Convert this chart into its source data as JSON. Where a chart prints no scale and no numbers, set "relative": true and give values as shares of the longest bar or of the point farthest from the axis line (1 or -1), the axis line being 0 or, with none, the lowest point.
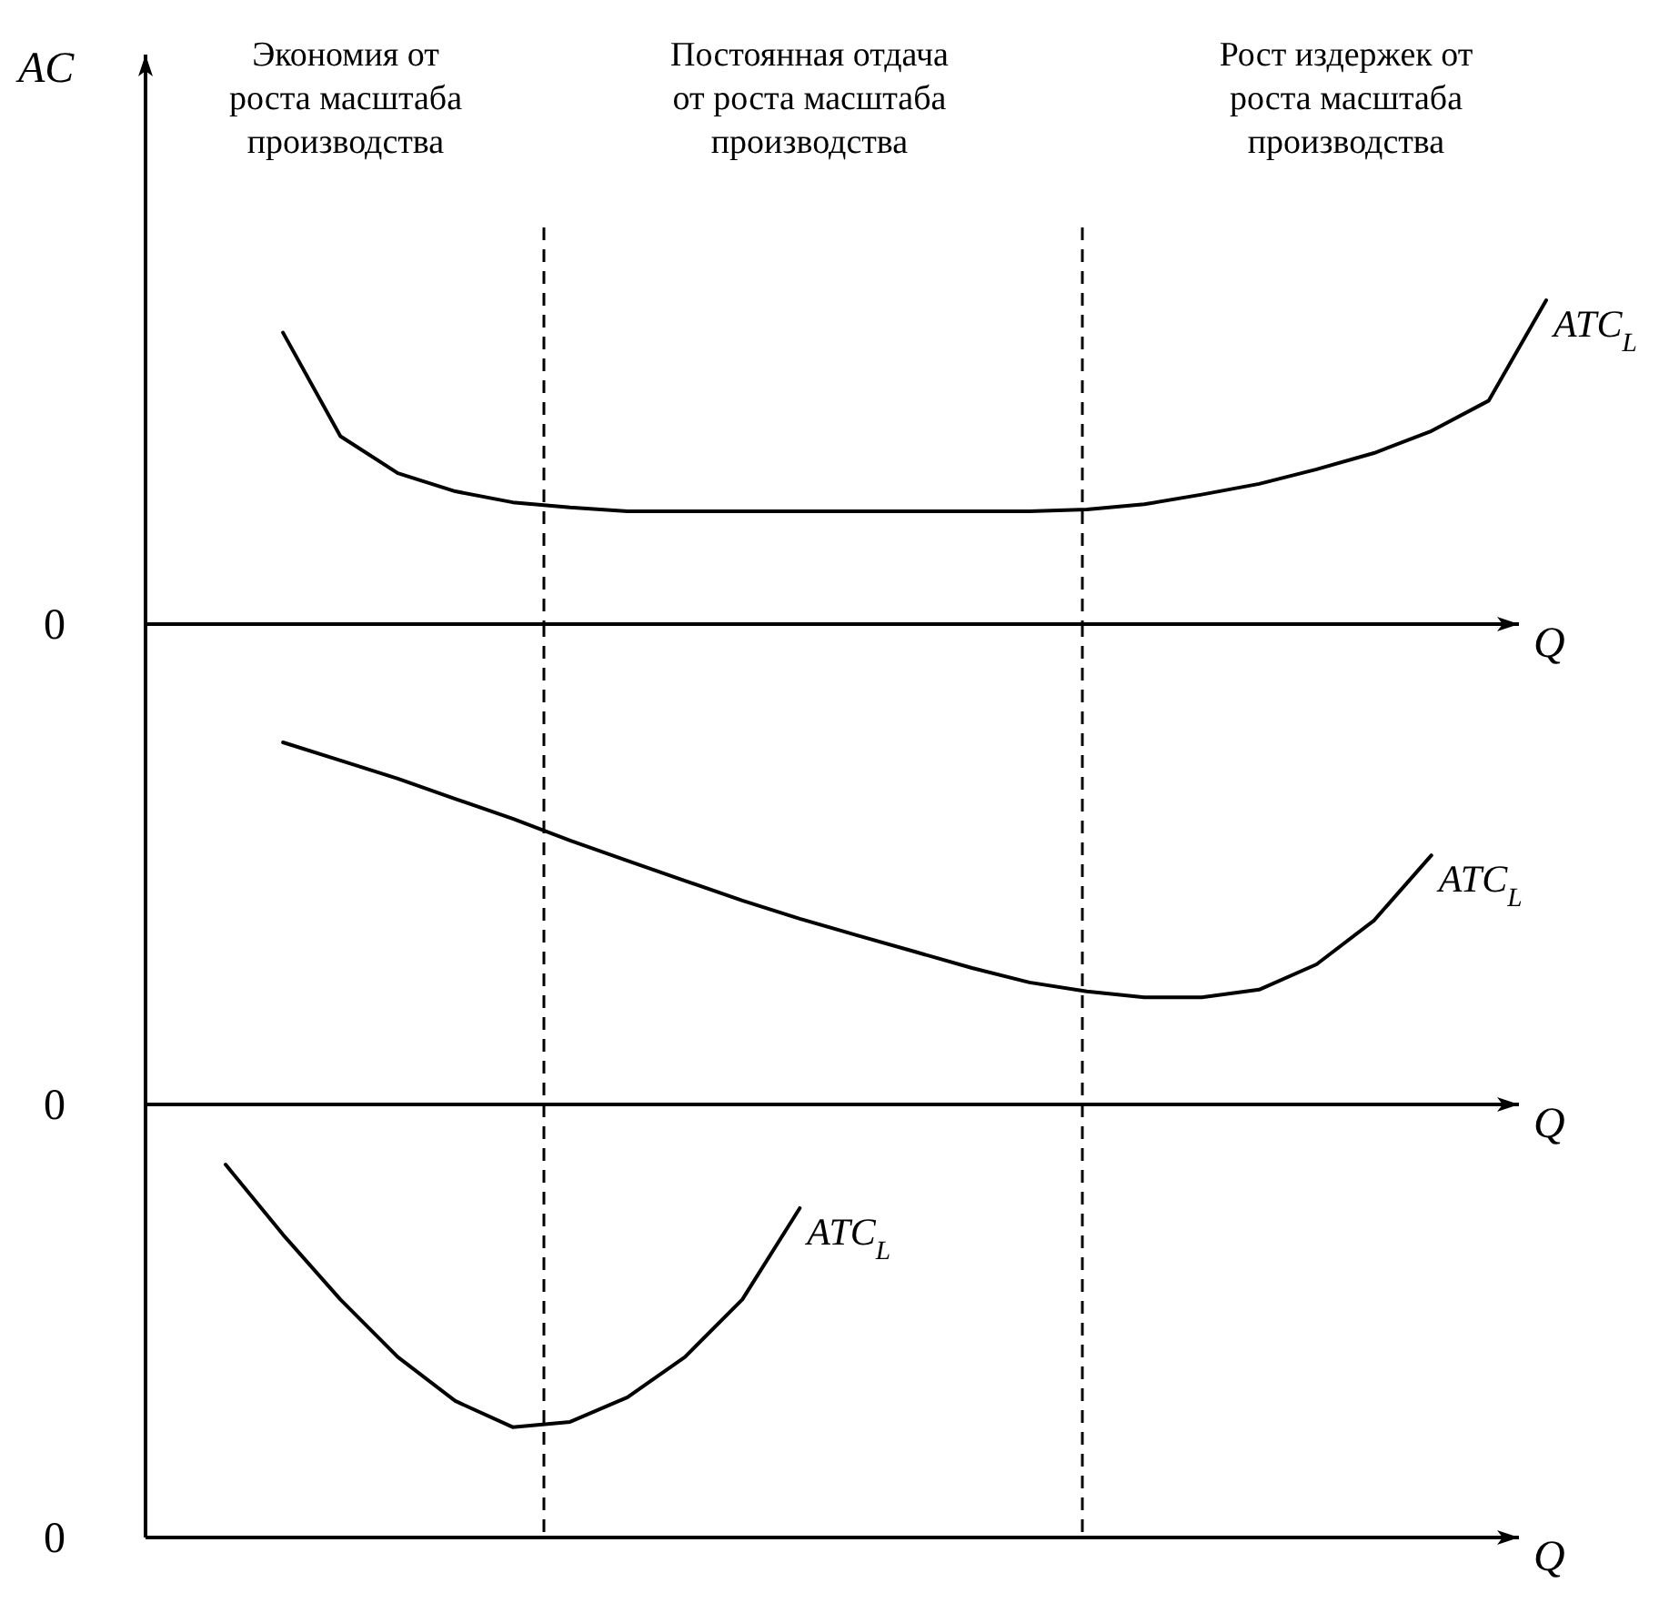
{
  "chart_data": [
    {
      "type": "line",
      "ylabel": "AC",
      "xlabel": "Q",
      "relative": true,
      "line_style": "solid",
      "categories": [
        null,
        null,
        null,
        null,
        null,
        null,
        null,
        null,
        null,
        null,
        null,
        null,
        null,
        null,
        null,
        null,
        null,
        null,
        null,
        null,
        null,
        null,
        null,
        null
      ],
      "annotations": [
        "Экономия от\nроста масштаба\nпроизводства",
        "Постоянная отдача\nот роста масштаба\nпроизводства",
        "Рост издержек от\nроста масштаба\nпроизводства",
        "0"
      ],
      "series": [
        {
          "name": "ATC$_{L}$",
          "color": "#000000",
          "values": [
            null,
            0.9,
            0.58,
            0.466,
            0.41,
            0.376,
            0.36,
            0.348,
            0.348,
            0.348,
            0.348,
            0.348,
            0.348,
            0.348,
            0.348,
            0.354,
            0.37,
            0.4,
            0.433,
            0.478,
            0.528,
            0.596,
            0.69,
            1.0
          ]
        }
      ]
    },
    {
      "type": "line",
      "xlabel": "Q",
      "relative": true,
      "line_style": "solid",
      "categories": [
        null,
        null,
        null,
        null,
        null,
        null,
        null,
        null,
        null,
        null,
        null,
        null,
        null,
        null,
        null,
        null,
        null,
        null,
        null,
        null,
        null,
        null,
        null,
        null
      ],
      "annotations": [
        "0"
      ],
      "series": [
        {
          "name": "ATC$_{L}$",
          "color": "#000000",
          "values": [
            null,
            1.0,
            0.95,
            0.9,
            0.844,
            0.789,
            0.729,
            0.673,
            0.618,
            0.563,
            0.513,
            0.467,
            0.422,
            0.377,
            0.337,
            0.312,
            0.296,
            0.296,
            0.317,
            0.387,
            0.508,
            0.688,
            null,
            null
          ]
        }
      ]
    },
    {
      "type": "line",
      "xlabel": "Q",
      "relative": true,
      "line_style": "solid",
      "categories": [
        null,
        null,
        null,
        null,
        null,
        null,
        null,
        null,
        null,
        null,
        null,
        null,
        null,
        null,
        null,
        null,
        null,
        null,
        null,
        null,
        null,
        null,
        null,
        null
      ],
      "annotations": [
        "0"
      ],
      "series": [
        {
          "name": "ATC$_{L}$",
          "color": "#000000",
          "values": [
            1.0,
            0.812,
            0.638,
            0.484,
            0.366,
            0.296,
            0.31,
            0.376,
            0.484,
            0.638,
            0.883,
            null,
            null,
            null,
            null,
            null,
            null,
            null,
            null,
            null,
            null,
            null,
            null,
            null
          ]
        }
      ]
    }
  ]
}
